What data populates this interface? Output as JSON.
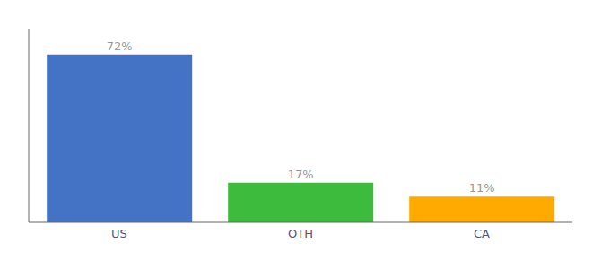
{
  "chart_data": {
    "type": "bar",
    "categories": [
      "US",
      "OTH",
      "CA"
    ],
    "values": [
      72,
      17,
      11
    ],
    "value_labels": [
      "72%",
      "17%",
      "11%"
    ],
    "colors": [
      "#4472c4",
      "#3dbb3d",
      "#ffaa00"
    ],
    "ylim": [
      0,
      83
    ],
    "data_labels": true,
    "tick_labels": "x",
    "grid": false
  }
}
